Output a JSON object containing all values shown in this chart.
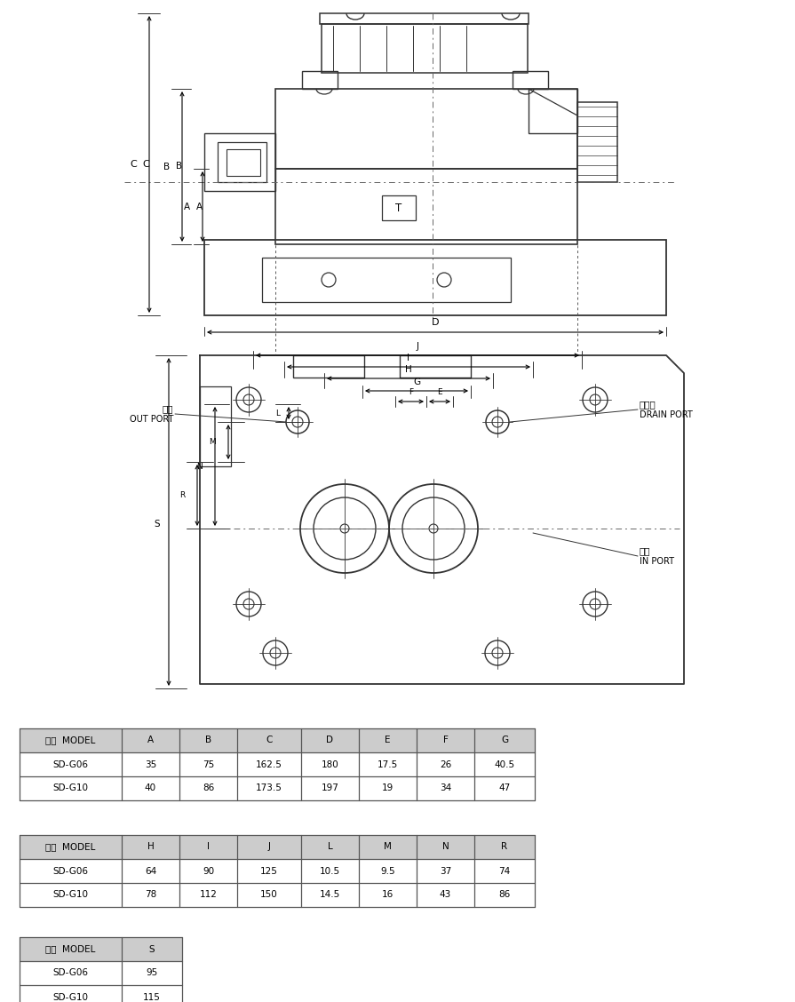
{
  "bg_color": "#ffffff",
  "line_color": "#333333",
  "dim_color": "#000000",
  "table1_header": [
    "型式  MODEL",
    "A",
    "B",
    "C",
    "D",
    "E",
    "F",
    "G"
  ],
  "table1_rows": [
    [
      "SD-G06",
      "35",
      "75",
      "162.5",
      "180",
      "17.5",
      "26",
      "40.5"
    ],
    [
      "SD-G10",
      "40",
      "86",
      "173.5",
      "197",
      "19",
      "34",
      "47"
    ]
  ],
  "table2_header": [
    "型式  MODEL",
    "H",
    "I",
    "J",
    "L",
    "M",
    "N",
    "R"
  ],
  "table2_rows": [
    [
      "SD-G06",
      "64",
      "90",
      "125",
      "10.5",
      "9.5",
      "37",
      "74"
    ],
    [
      "SD-G10",
      "78",
      "112",
      "150",
      "14.5",
      "16",
      "43",
      "86"
    ]
  ],
  "table3_header": [
    "型式  MODEL",
    "S"
  ],
  "table3_rows": [
    [
      "SD-G06",
      "95"
    ],
    [
      "SD-G10",
      "115"
    ]
  ]
}
